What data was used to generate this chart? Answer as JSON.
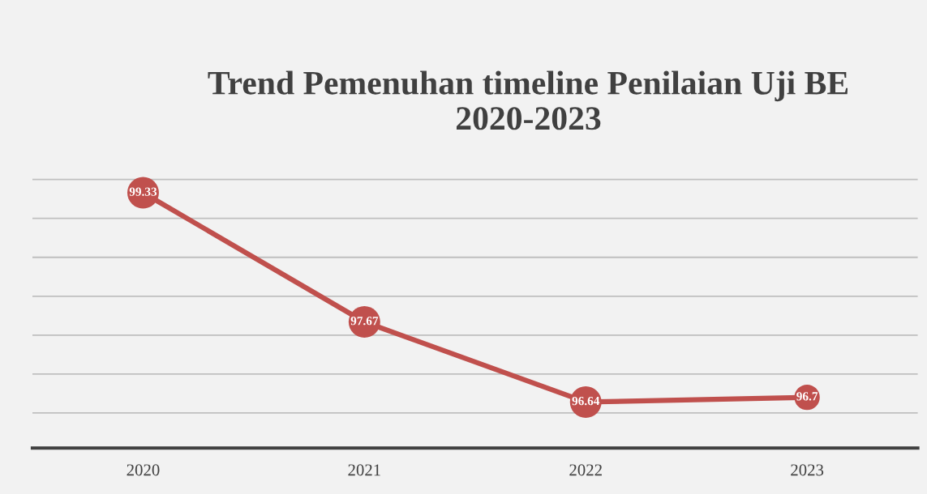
{
  "chart_data": {
    "type": "line",
    "title": "Trend Pemenuhan timeline Penilaian Uji BE 2020-2023",
    "categories": [
      "2020",
      "2021",
      "2022",
      "2023"
    ],
    "series": [
      {
        "color": "#c0504d",
        "values": [
          99.33,
          97.67,
          96.64,
          96.7
        ]
      }
    ],
    "data_labels": true,
    "marker": "circle",
    "line_style": "solid",
    "grid": "y",
    "tick_labels": "x"
  }
}
